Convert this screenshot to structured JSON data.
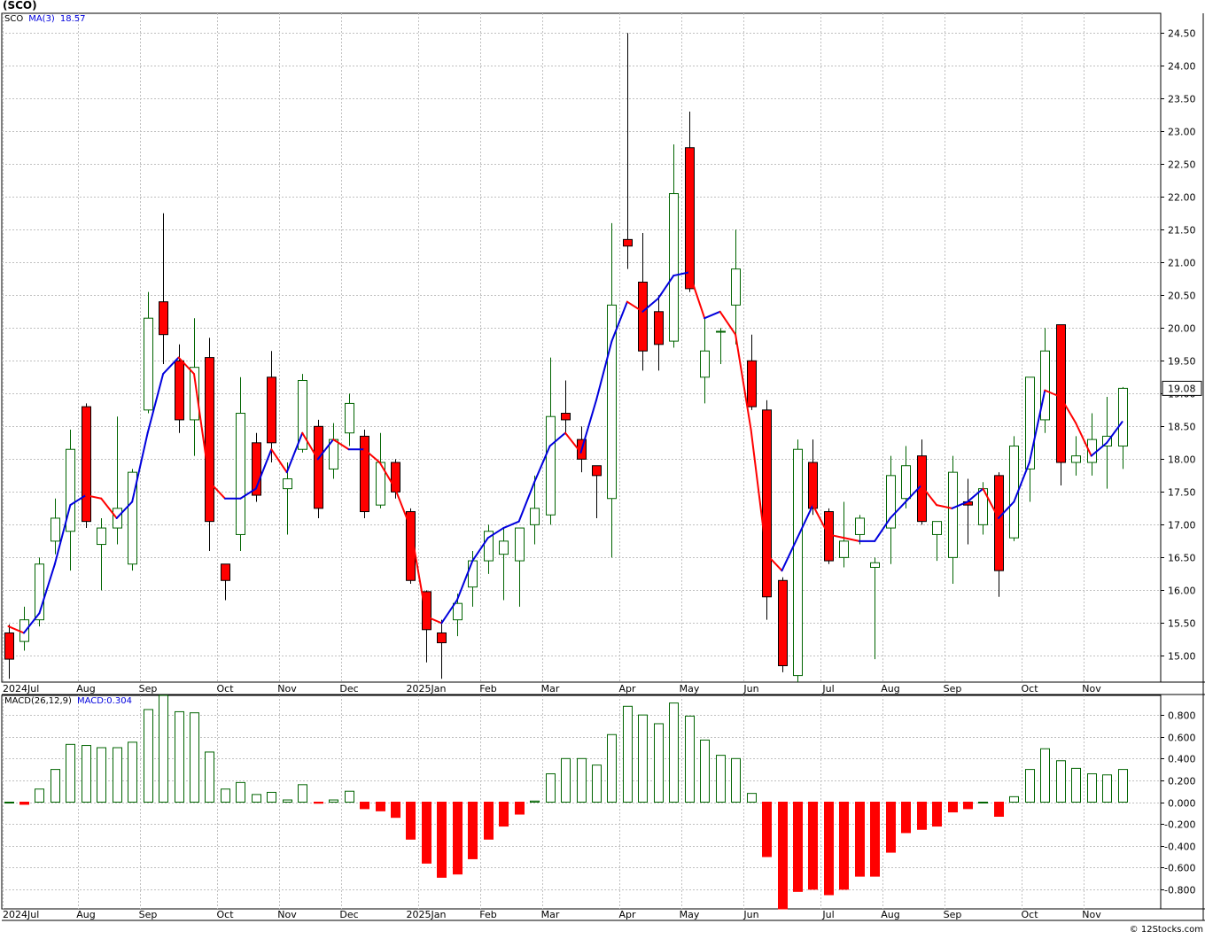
{
  "header": {
    "title": "(SCO)",
    "credit": "© 12Stocks.com"
  },
  "price_panel": {
    "symbol": "SCO",
    "ma_label": "MA(3)",
    "ma_value": "18.57",
    "last_price_label": "19.08"
  },
  "macd_panel": {
    "label": "MACD(26,12,9)",
    "value_label": "MACD:0.304"
  },
  "x_axis_labels": [
    {
      "text": "2024Jul",
      "i": -0.5
    },
    {
      "text": "Aug",
      "i": 5
    },
    {
      "text": "Sep",
      "i": 9
    },
    {
      "text": "Oct",
      "i": 14
    },
    {
      "text": "Nov",
      "i": 18
    },
    {
      "text": "Dec",
      "i": 22
    },
    {
      "text": "2025Jan",
      "i": 27
    },
    {
      "text": "Feb",
      "i": 31
    },
    {
      "text": "Mar",
      "i": 35
    },
    {
      "text": "Apr",
      "i": 40
    },
    {
      "text": "May",
      "i": 44
    },
    {
      "text": "Jun",
      "i": 48
    },
    {
      "text": "Jul",
      "i": 53
    },
    {
      "text": "Aug",
      "i": 57
    },
    {
      "text": "Sep",
      "i": 61
    },
    {
      "text": "Oct",
      "i": 66
    },
    {
      "text": "Nov",
      "i": 70
    }
  ],
  "colors": {
    "up": "#006400",
    "down": "#ff0000",
    "ma_up": "#0000dd",
    "ma_down": "#ff0000",
    "grid": "#c0c0c0",
    "axis": "#000000"
  },
  "chart_data": [
    {
      "type": "candlestick",
      "title": "(SCO)",
      "ylim": [
        14.6,
        24.8
      ],
      "yticks": [
        15.0,
        15.5,
        16.0,
        16.5,
        17.0,
        17.5,
        18.0,
        18.5,
        19.0,
        19.5,
        20.0,
        20.5,
        21.0,
        21.5,
        22.0,
        22.5,
        23.0,
        23.5,
        24.0,
        24.5
      ],
      "grid": true,
      "candles": [
        {
          "o": 15.35,
          "h": 15.48,
          "l": 14.65,
          "c": 14.95
        },
        {
          "o": 15.22,
          "h": 15.75,
          "l": 15.08,
          "c": 15.55
        },
        {
          "o": 15.55,
          "h": 16.5,
          "l": 15.45,
          "c": 16.4
        },
        {
          "o": 16.75,
          "h": 17.4,
          "l": 16.55,
          "c": 17.1
        },
        {
          "o": 16.9,
          "h": 18.45,
          "l": 16.3,
          "c": 18.15
        },
        {
          "o": 18.8,
          "h": 18.85,
          "l": 16.95,
          "c": 17.05
        },
        {
          "o": 16.7,
          "h": 17.1,
          "l": 16.0,
          "c": 16.95
        },
        {
          "o": 16.95,
          "h": 18.65,
          "l": 16.7,
          "c": 17.25
        },
        {
          "o": 16.4,
          "h": 17.85,
          "l": 16.3,
          "c": 17.8
        },
        {
          "o": 18.75,
          "h": 20.55,
          "l": 18.7,
          "c": 20.15
        },
        {
          "o": 20.4,
          "h": 21.75,
          "l": 19.45,
          "c": 19.9
        },
        {
          "o": 19.5,
          "h": 19.75,
          "l": 18.4,
          "c": 18.6
        },
        {
          "o": 18.6,
          "h": 20.15,
          "l": 18.05,
          "c": 19.4
        },
        {
          "o": 19.55,
          "h": 19.85,
          "l": 16.6,
          "c": 17.05
        },
        {
          "o": 16.4,
          "h": 16.4,
          "l": 15.85,
          "c": 16.15
        },
        {
          "o": 16.85,
          "h": 19.25,
          "l": 16.6,
          "c": 18.7
        },
        {
          "o": 18.25,
          "h": 18.4,
          "l": 17.35,
          "c": 17.45
        },
        {
          "o": 19.25,
          "h": 19.65,
          "l": 17.95,
          "c": 18.25
        },
        {
          "o": 17.55,
          "h": 17.95,
          "l": 16.85,
          "c": 17.7
        },
        {
          "o": 18.15,
          "h": 19.3,
          "l": 18.1,
          "c": 19.2
        },
        {
          "o": 18.5,
          "h": 18.6,
          "l": 17.1,
          "c": 17.25
        },
        {
          "o": 17.85,
          "h": 18.55,
          "l": 17.7,
          "c": 18.3
        },
        {
          "o": 18.4,
          "h": 19.0,
          "l": 18.2,
          "c": 18.85
        },
        {
          "o": 18.35,
          "h": 18.45,
          "l": 17.1,
          "c": 17.2
        },
        {
          "o": 17.3,
          "h": 18.4,
          "l": 17.25,
          "c": 17.95
        },
        {
          "o": 17.95,
          "h": 18.0,
          "l": 17.4,
          "c": 17.5
        },
        {
          "o": 17.2,
          "h": 17.25,
          "l": 16.1,
          "c": 16.15
        },
        {
          "o": 15.98,
          "h": 16.0,
          "l": 14.9,
          "c": 15.4
        },
        {
          "o": 15.35,
          "h": 15.55,
          "l": 14.65,
          "c": 15.2
        },
        {
          "o": 15.55,
          "h": 15.95,
          "l": 15.3,
          "c": 15.8
        },
        {
          "o": 16.05,
          "h": 16.6,
          "l": 15.75,
          "c": 16.45
        },
        {
          "o": 16.45,
          "h": 17.0,
          "l": 16.25,
          "c": 16.9
        },
        {
          "o": 16.55,
          "h": 16.95,
          "l": 15.85,
          "c": 16.75
        },
        {
          "o": 16.45,
          "h": 16.95,
          "l": 15.75,
          "c": 16.95
        },
        {
          "o": 17.0,
          "h": 17.75,
          "l": 16.7,
          "c": 17.25
        },
        {
          "o": 17.15,
          "h": 19.55,
          "l": 17.0,
          "c": 18.65
        },
        {
          "o": 18.7,
          "h": 19.2,
          "l": 18.4,
          "c": 18.6
        },
        {
          "o": 18.3,
          "h": 18.5,
          "l": 17.8,
          "c": 18.0
        },
        {
          "o": 17.9,
          "h": 17.9,
          "l": 17.1,
          "c": 17.75
        },
        {
          "o": 17.4,
          "h": 21.6,
          "l": 16.5,
          "c": 20.35
        },
        {
          "o": 21.35,
          "h": 24.5,
          "l": 20.9,
          "c": 21.25
        },
        {
          "o": 20.7,
          "h": 21.45,
          "l": 19.35,
          "c": 19.65
        },
        {
          "o": 20.25,
          "h": 20.5,
          "l": 19.35,
          "c": 19.75
        },
        {
          "o": 19.8,
          "h": 22.8,
          "l": 19.7,
          "c": 22.05
        },
        {
          "o": 22.75,
          "h": 23.3,
          "l": 20.55,
          "c": 20.6
        },
        {
          "o": 19.25,
          "h": 20.15,
          "l": 18.85,
          "c": 19.65
        },
        {
          "o": 19.95,
          "h": 20.0,
          "l": 19.45,
          "c": 19.95
        },
        {
          "o": 20.35,
          "h": 21.5,
          "l": 19.75,
          "c": 20.9
        },
        {
          "o": 19.5,
          "h": 19.9,
          "l": 18.75,
          "c": 18.8
        },
        {
          "o": 18.75,
          "h": 18.9,
          "l": 15.55,
          "c": 15.9
        },
        {
          "o": 16.15,
          "h": 16.2,
          "l": 14.75,
          "c": 14.85
        },
        {
          "o": 14.7,
          "h": 18.3,
          "l": 14.6,
          "c": 18.15
        },
        {
          "o": 17.95,
          "h": 18.3,
          "l": 17.15,
          "c": 17.25
        },
        {
          "o": 17.2,
          "h": 17.25,
          "l": 16.4,
          "c": 16.45
        },
        {
          "o": 16.5,
          "h": 17.35,
          "l": 16.35,
          "c": 16.75
        },
        {
          "o": 16.85,
          "h": 17.15,
          "l": 16.7,
          "c": 17.1
        },
        {
          "o": 16.35,
          "h": 16.5,
          "l": 14.95,
          "c": 16.42
        },
        {
          "o": 16.95,
          "h": 18.05,
          "l": 16.4,
          "c": 17.75
        },
        {
          "o": 17.4,
          "h": 18.2,
          "l": 17.25,
          "c": 17.9
        },
        {
          "o": 18.05,
          "h": 18.3,
          "l": 17.0,
          "c": 17.05
        },
        {
          "o": 16.85,
          "h": 17.05,
          "l": 16.45,
          "c": 17.05
        },
        {
          "o": 16.5,
          "h": 18.05,
          "l": 16.1,
          "c": 17.8
        },
        {
          "o": 17.35,
          "h": 17.7,
          "l": 16.7,
          "c": 17.3
        },
        {
          "o": 17.0,
          "h": 17.65,
          "l": 16.85,
          "c": 17.55
        },
        {
          "o": 17.75,
          "h": 17.8,
          "l": 15.9,
          "c": 16.3
        },
        {
          "o": 16.8,
          "h": 18.35,
          "l": 16.75,
          "c": 18.2
        },
        {
          "o": 17.85,
          "h": 19.25,
          "l": 17.35,
          "c": 19.25
        },
        {
          "o": 18.6,
          "h": 20.0,
          "l": 18.4,
          "c": 19.65
        },
        {
          "o": 20.05,
          "h": 20.05,
          "l": 17.6,
          "c": 17.95
        },
        {
          "o": 17.95,
          "h": 18.35,
          "l": 17.75,
          "c": 18.05
        },
        {
          "o": 17.95,
          "h": 18.7,
          "l": 17.75,
          "c": 18.3
        },
        {
          "o": 18.2,
          "h": 18.95,
          "l": 17.55,
          "c": 18.35
        },
        {
          "o": 18.2,
          "h": 19.1,
          "l": 17.85,
          "c": 19.08
        }
      ],
      "ma3": [
        15.45,
        15.35,
        15.65,
        16.4,
        17.3,
        17.45,
        17.4,
        17.1,
        17.35,
        18.4,
        19.3,
        19.55,
        19.3,
        17.65,
        17.4,
        17.4,
        17.55,
        18.15,
        17.8,
        18.4,
        18.0,
        18.3,
        18.15,
        18.15,
        17.95,
        17.55,
        16.95,
        15.6,
        15.5,
        15.85,
        16.45,
        16.8,
        16.95,
        17.05,
        17.65,
        18.2,
        18.4,
        18.1,
        18.9,
        19.8,
        20.4,
        20.25,
        20.45,
        20.8,
        20.85,
        20.15,
        20.25,
        19.9,
        18.45,
        16.55,
        16.3,
        16.8,
        17.3,
        16.85,
        16.8,
        16.75,
        16.75,
        17.1,
        17.35,
        17.6,
        17.3,
        17.25,
        17.35,
        17.55,
        17.1,
        17.35,
        17.95,
        19.05,
        18.95,
        18.55,
        18.05,
        18.25,
        18.57
      ]
    },
    {
      "type": "bar",
      "title": "MACD(26,12,9)",
      "ylim": [
        -0.98,
        0.98
      ],
      "yticks": [
        -0.8,
        -0.6,
        -0.4,
        -0.2,
        0.0,
        0.2,
        0.4,
        0.6,
        0.8
      ],
      "values": [
        0.0,
        -0.02,
        0.12,
        0.3,
        0.53,
        0.52,
        0.5,
        0.5,
        0.55,
        0.85,
        0.98,
        0.83,
        0.82,
        0.46,
        0.12,
        0.18,
        0.07,
        0.09,
        0.02,
        0.16,
        -0.01,
        0.02,
        0.1,
        -0.06,
        -0.08,
        -0.14,
        -0.34,
        -0.56,
        -0.69,
        -0.66,
        -0.52,
        -0.34,
        -0.22,
        -0.11,
        0.01,
        0.26,
        0.4,
        0.4,
        0.34,
        0.62,
        0.88,
        0.8,
        0.72,
        0.91,
        0.79,
        0.57,
        0.43,
        0.4,
        0.08,
        -0.5,
        -0.98,
        -0.82,
        -0.8,
        -0.85,
        -0.8,
        -0.68,
        -0.68,
        -0.46,
        -0.28,
        -0.25,
        -0.22,
        -0.09,
        -0.06,
        0.0,
        -0.13,
        0.05,
        0.3,
        0.49,
        0.38,
        0.31,
        0.26,
        0.25,
        0.3
      ]
    }
  ]
}
